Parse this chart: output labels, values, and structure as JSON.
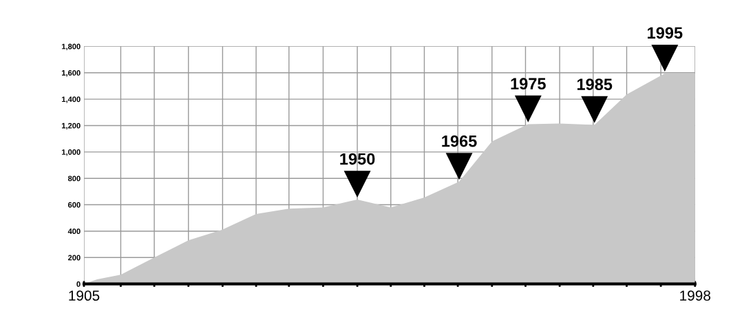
{
  "chart_data": {
    "type": "area",
    "color": "#c8c8c8",
    "x": [
      1905,
      1907,
      1910.6,
      1915.7,
      1920.9,
      1926,
      1931.2,
      1936.2,
      1941.4,
      1946.6,
      1951.7,
      1956.8,
      1962.1,
      1967.1,
      1972.6,
      1977.4,
      1982.7,
      1987.6,
      1993.4,
      1998
    ],
    "values": [
      0,
      35,
      70,
      200,
      330,
      410,
      530,
      570,
      580,
      640,
      580,
      655,
      775,
      1080,
      1210,
      1215,
      1205,
      1435,
      1595,
      1595
    ],
    "xlim": [
      1905,
      1998
    ],
    "xticks": [
      1905,
      {
        "value": 1910.6,
        "label": null
      },
      {
        "value": 1915.7,
        "label": null
      },
      {
        "value": 1920.9,
        "label": null
      },
      {
        "value": 1926.1,
        "label": null
      },
      {
        "value": 1931.2,
        "label": null
      },
      {
        "value": 1936.2,
        "label": null
      },
      {
        "value": 1941.4,
        "label": null
      },
      {
        "value": 1946.6,
        "label": null
      },
      {
        "value": 1951.7,
        "label": null
      },
      {
        "value": 1956.8,
        "label": null
      },
      {
        "value": 1961.9,
        "label": null
      },
      {
        "value": 1967.1,
        "label": null
      },
      {
        "value": 1972.2,
        "label": null
      },
      {
        "value": 1977.4,
        "label": null
      },
      {
        "value": 1982.5,
        "label": null
      },
      {
        "value": 1987.6,
        "label": null
      },
      {
        "value": 1992.8,
        "label": null
      },
      1998
    ],
    "ylim": [
      0,
      1800
    ],
    "yticks": [
      0,
      {
        "value": 200,
        "label": "200"
      },
      {
        "value": 400,
        "label": "400"
      },
      {
        "value": 600,
        "label": "600"
      },
      {
        "value": 800,
        "label": "800"
      },
      {
        "value": 1000,
        "label": "1,000"
      },
      {
        "value": 1200,
        "label": "1,200"
      },
      {
        "value": 1400,
        "label": "1,400"
      },
      {
        "value": 1600,
        "label": "1,600"
      },
      {
        "value": 1800,
        "label": "1,800"
      }
    ],
    "grid": true,
    "annotations": [
      {
        "text": "1950",
        "x": 1946.6,
        "y": 640
      },
      {
        "text": "1965",
        "x": 1962.1,
        "y": 775
      },
      {
        "text": "1975",
        "x": 1972.6,
        "y": 1210
      },
      {
        "text": "1985",
        "x": 1982.7,
        "y": 1205
      },
      {
        "text": "1995",
        "x": 1993.4,
        "y": 1595
      }
    ]
  }
}
